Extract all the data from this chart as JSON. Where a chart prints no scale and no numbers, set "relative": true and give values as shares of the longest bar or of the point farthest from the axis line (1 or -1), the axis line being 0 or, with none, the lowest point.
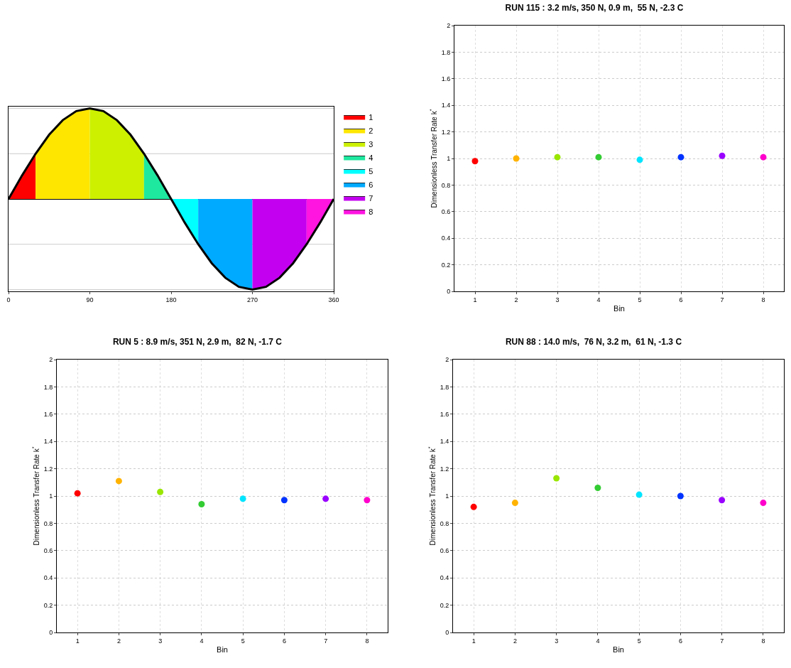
{
  "chart_data": [
    {
      "type": "area",
      "relative": true,
      "xlim": [
        0,
        360
      ],
      "xticks": [
        0,
        90,
        180,
        270,
        360
      ],
      "legend": "right",
      "ref_lines": [
        {
          "axis": "y",
          "value": 1,
          "color": "#cccccc"
        },
        {
          "axis": "y",
          "value": 0.5,
          "color": "#cccccc"
        },
        {
          "axis": "y",
          "value": -0.5,
          "color": "#cccccc"
        },
        {
          "axis": "y",
          "value": -1,
          "color": "#cccccc"
        }
      ],
      "series": [
        {
          "name": "1",
          "color": "#ff0000",
          "x": [
            0,
            15,
            30
          ],
          "values": [
            0,
            0.26,
            0.5
          ]
        },
        {
          "name": "2",
          "color": "#ffe600",
          "x": [
            30,
            45,
            60,
            75,
            90
          ],
          "values": [
            0.5,
            0.71,
            0.87,
            0.97,
            1
          ]
        },
        {
          "name": "3",
          "color": "#ccf000",
          "x": [
            90,
            105,
            120,
            135,
            150
          ],
          "values": [
            1,
            0.97,
            0.87,
            0.71,
            0.5
          ]
        },
        {
          "name": "4",
          "color": "#1ee8a0",
          "x": [
            150,
            165,
            180
          ],
          "values": [
            0.5,
            0.26,
            0
          ]
        },
        {
          "name": "5",
          "color": "#00ffff",
          "x": [
            180,
            195,
            210
          ],
          "values": [
            0,
            -0.26,
            -0.5
          ]
        },
        {
          "name": "6",
          "color": "#00aaff",
          "x": [
            210,
            225,
            240,
            255,
            270
          ],
          "values": [
            -0.5,
            -0.71,
            -0.87,
            -0.97,
            -1
          ]
        },
        {
          "name": "7",
          "color": "#c400f0",
          "x": [
            270,
            285,
            300,
            315,
            330
          ],
          "values": [
            -1,
            -0.97,
            -0.87,
            -0.71,
            -0.5
          ]
        },
        {
          "name": "8",
          "color": "#ff14e0",
          "x": [
            330,
            345,
            360
          ],
          "values": [
            -0.5,
            -0.26,
            0
          ]
        },
        {
          "type": "line",
          "color": "#000000",
          "x": [
            0,
            15,
            30,
            45,
            60,
            75,
            90,
            105,
            120,
            135,
            150,
            165,
            180,
            195,
            210,
            225,
            240,
            255,
            270,
            285,
            300,
            315,
            330,
            345,
            360
          ],
          "values": [
            0,
            0.26,
            0.5,
            0.71,
            0.87,
            0.97,
            1,
            0.97,
            0.87,
            0.71,
            0.5,
            0.26,
            0,
            -0.26,
            -0.5,
            -0.71,
            -0.87,
            -0.97,
            -1,
            -0.97,
            -0.87,
            -0.71,
            -0.5,
            -0.26,
            0
          ]
        }
      ]
    },
    {
      "type": "scatter",
      "title": "RUN 115 : 3.2 m/s, 350 N, 0.9 m,  55 N, -2.3 C",
      "xlabel": "Bin",
      "ylabel": "Dimensionless Transfer Rate k$^{*}$",
      "categories": [
        "1",
        "2",
        "3",
        "4",
        "5",
        "6",
        "7",
        "8"
      ],
      "ylim": [
        0,
        2
      ],
      "yticks": [
        0,
        0.2,
        0.4,
        0.6,
        0.8,
        1,
        1.2,
        1.4,
        1.6,
        1.8,
        2
      ],
      "grid": true,
      "marker": "circle",
      "colors": [
        "#ff0000",
        "#ffb300",
        "#99e600",
        "#33cc33",
        "#00e5ff",
        "#0033ff",
        "#9900ff",
        "#ff00cc"
      ],
      "values": [
        0.98,
        1.0,
        1.01,
        1.01,
        0.99,
        1.01,
        1.02,
        1.01
      ]
    },
    {
      "type": "scatter",
      "title": "RUN 5 : 8.9 m/s, 351 N, 2.9 m,  82 N, -1.7 C",
      "xlabel": "Bin",
      "ylabel": "Dimensionless Transfer Rate k$^{*}$",
      "categories": [
        "1",
        "2",
        "3",
        "4",
        "5",
        "6",
        "7",
        "8"
      ],
      "ylim": [
        0,
        2
      ],
      "yticks": [
        0,
        0.2,
        0.4,
        0.6,
        0.8,
        1,
        1.2,
        1.4,
        1.6,
        1.8,
        2
      ],
      "grid": true,
      "marker": "circle",
      "colors": [
        "#ff0000",
        "#ffb300",
        "#99e600",
        "#33cc33",
        "#00e5ff",
        "#0033ff",
        "#9900ff",
        "#ff00cc"
      ],
      "values": [
        1.02,
        1.11,
        1.03,
        0.94,
        0.98,
        0.97,
        0.98,
        0.97
      ]
    },
    {
      "type": "scatter",
      "title": "RUN 88 : 14.0 m/s,  76 N, 3.2 m,  61 N, -1.3 C",
      "xlabel": "Bin",
      "ylabel": "Dimensionless Transfer Rate k$^{*}$",
      "categories": [
        "1",
        "2",
        "3",
        "4",
        "5",
        "6",
        "7",
        "8"
      ],
      "ylim": [
        0,
        2
      ],
      "yticks": [
        0,
        0.2,
        0.4,
        0.6,
        0.8,
        1,
        1.2,
        1.4,
        1.6,
        1.8,
        2
      ],
      "grid": true,
      "marker": "circle",
      "colors": [
        "#ff0000",
        "#ffb300",
        "#99e600",
        "#33cc33",
        "#00e5ff",
        "#0033ff",
        "#9900ff",
        "#ff00cc"
      ],
      "values": [
        0.92,
        0.95,
        1.13,
        1.06,
        1.01,
        1.0,
        0.97,
        0.95
      ]
    }
  ]
}
